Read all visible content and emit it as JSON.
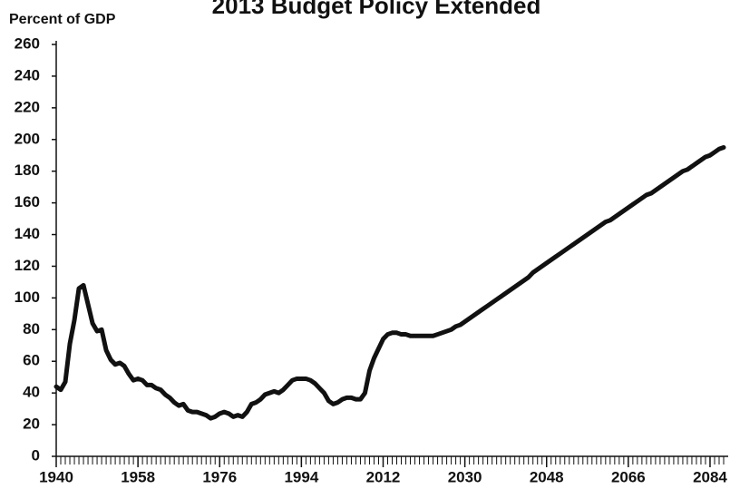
{
  "chart_data": {
    "type": "line",
    "title": "2013 Budget Policy Extended",
    "y_label": "Percent of GDP",
    "x": [
      1940,
      1941,
      1942,
      1943,
      1944,
      1945,
      1946,
      1947,
      1948,
      1949,
      1950,
      1951,
      1952,
      1953,
      1954,
      1955,
      1956,
      1957,
      1958,
      1959,
      1960,
      1961,
      1962,
      1963,
      1964,
      1965,
      1966,
      1967,
      1968,
      1969,
      1970,
      1971,
      1972,
      1973,
      1974,
      1975,
      1976,
      1977,
      1978,
      1979,
      1980,
      1981,
      1982,
      1983,
      1984,
      1985,
      1986,
      1987,
      1988,
      1989,
      1990,
      1991,
      1992,
      1993,
      1994,
      1995,
      1996,
      1997,
      1998,
      1999,
      2000,
      2001,
      2002,
      2003,
      2004,
      2005,
      2006,
      2007,
      2008,
      2009,
      2010,
      2011,
      2012,
      2013,
      2014,
      2015,
      2016,
      2017,
      2018,
      2019,
      2020,
      2021,
      2022,
      2023,
      2024,
      2025,
      2026,
      2027,
      2028,
      2029,
      2030,
      2031,
      2032,
      2033,
      2034,
      2035,
      2036,
      2037,
      2038,
      2039,
      2040,
      2041,
      2042,
      2043,
      2044,
      2045,
      2046,
      2047,
      2048,
      2049,
      2050,
      2051,
      2052,
      2053,
      2054,
      2055,
      2056,
      2057,
      2058,
      2059,
      2060,
      2061,
      2062,
      2063,
      2064,
      2065,
      2066,
      2067,
      2068,
      2069,
      2070,
      2071,
      2072,
      2073,
      2074,
      2075,
      2076,
      2077,
      2078,
      2079,
      2080,
      2081,
      2082,
      2083,
      2084,
      2085,
      2086,
      2087
    ],
    "values": [
      44,
      42,
      47,
      71,
      86,
      106,
      108,
      96,
      84,
      79,
      80,
      67,
      61,
      58,
      59,
      57,
      52,
      48,
      49,
      48,
      45,
      45,
      43,
      42,
      39,
      37,
      34,
      32,
      33,
      29,
      28,
      28,
      27,
      26,
      24,
      25,
      27,
      28,
      27,
      25,
      26,
      25,
      28,
      33,
      34,
      36,
      39,
      40,
      41,
      40,
      42,
      45,
      48,
      49,
      49,
      49,
      48,
      46,
      43,
      40,
      35,
      33,
      34,
      36,
      37,
      37,
      36,
      36,
      40,
      54,
      62,
      68,
      74,
      77,
      78,
      78,
      77,
      77,
      76,
      76,
      76,
      76,
      76,
      76,
      77,
      78,
      79,
      80,
      82,
      83,
      85,
      87,
      89,
      91,
      93,
      95,
      97,
      99,
      101,
      103,
      105,
      107,
      109,
      111,
      113,
      116,
      118,
      120,
      122,
      124,
      126,
      128,
      130,
      132,
      134,
      136,
      138,
      140,
      142,
      144,
      146,
      148,
      149,
      151,
      153,
      155,
      157,
      159,
      161,
      163,
      165,
      166,
      168,
      170,
      172,
      174,
      176,
      178,
      180,
      181,
      183,
      185,
      187,
      189,
      190,
      192,
      194,
      195
    ],
    "color": "#111111",
    "xlim": [
      1940,
      2087
    ],
    "xticks": [
      1940,
      1958,
      1976,
      1994,
      2012,
      2030,
      2048,
      2066,
      2084
    ],
    "ylim": [
      0,
      260
    ],
    "yticks": [
      0,
      20,
      40,
      60,
      80,
      100,
      120,
      140,
      160,
      180,
      200,
      220,
      240,
      260
    ]
  }
}
